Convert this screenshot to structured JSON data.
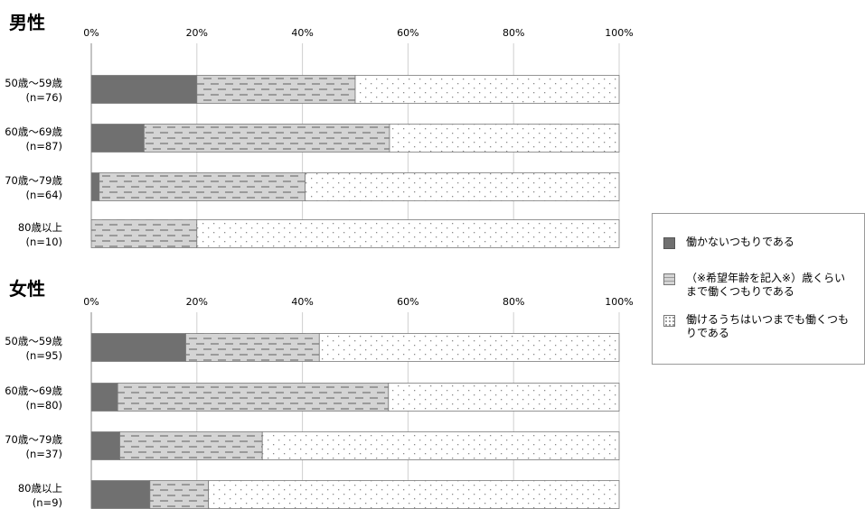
{
  "chart_data": [
    {
      "type": "bar",
      "orientation": "horizontal",
      "stacked": "percent",
      "title": "男性",
      "categories": [
        "50歳～59歳\n(n=76)",
        "60歳～69歳\n(n=87)",
        "70歳～79歳\n(n=64)",
        "80歳以上\n(n=10)"
      ],
      "xticks": [
        "0%",
        "20%",
        "40%",
        "60%",
        "80%",
        "100%"
      ],
      "xlim": [
        0,
        100
      ],
      "grid": "vertical",
      "series": [
        {
          "name": "働かないつもりである",
          "values": [
            20,
            10,
            1.5,
            0
          ]
        },
        {
          "name": "（※希望年齢を記入※）歳くらいまで働くつもりである",
          "values": [
            30,
            46.5,
            39,
            20
          ]
        },
        {
          "name": "働けるうちはいつまでも働くつもりである",
          "values": [
            50,
            43.5,
            59.5,
            80
          ]
        }
      ]
    },
    {
      "type": "bar",
      "orientation": "horizontal",
      "stacked": "percent",
      "title": "女性",
      "categories": [
        "50歳～59歳\n(n=95)",
        "60歳～69歳\n(n=80)",
        "70歳～79歳\n(n=37)",
        "80歳以上\n(n=9)"
      ],
      "xticks": [
        "0%",
        "20%",
        "40%",
        "60%",
        "80%",
        "100%"
      ],
      "xlim": [
        0,
        100
      ],
      "grid": "vertical",
      "series": [
        {
          "name": "働かないつもりである",
          "values": [
            17.9,
            5,
            5.4,
            11.1
          ]
        },
        {
          "name": "（※希望年齢を記入※）歳くらいまで働くつもりである",
          "values": [
            25.3,
            51.3,
            27,
            11.1
          ]
        },
        {
          "name": "働けるうちはいつまでも働くつもりである",
          "values": [
            56.8,
            43.7,
            67.6,
            77.8
          ]
        }
      ]
    }
  ],
  "legend": {
    "placement": "right",
    "items": [
      {
        "label": "働かないつもりである",
        "pattern": "solid",
        "color": "#707070"
      },
      {
        "label": "（※希望年齢を記入※）歳くらいまで働くつもりである",
        "pattern": "dashes",
        "color": "#d4d4d4"
      },
      {
        "label": "働けるうちはいつまでも働くつもりである",
        "pattern": "dots",
        "color": "#ffffff"
      }
    ]
  },
  "colors": {
    "solid": "#707070",
    "dashes_bg": "#d4d4d4",
    "dashes_fg": "#9a9a9a",
    "dots_bg": "#ffffff",
    "dots_fg": "#8a8a8a",
    "bar_edge": "#7a7a7a",
    "grid": "#d0d0d0"
  }
}
